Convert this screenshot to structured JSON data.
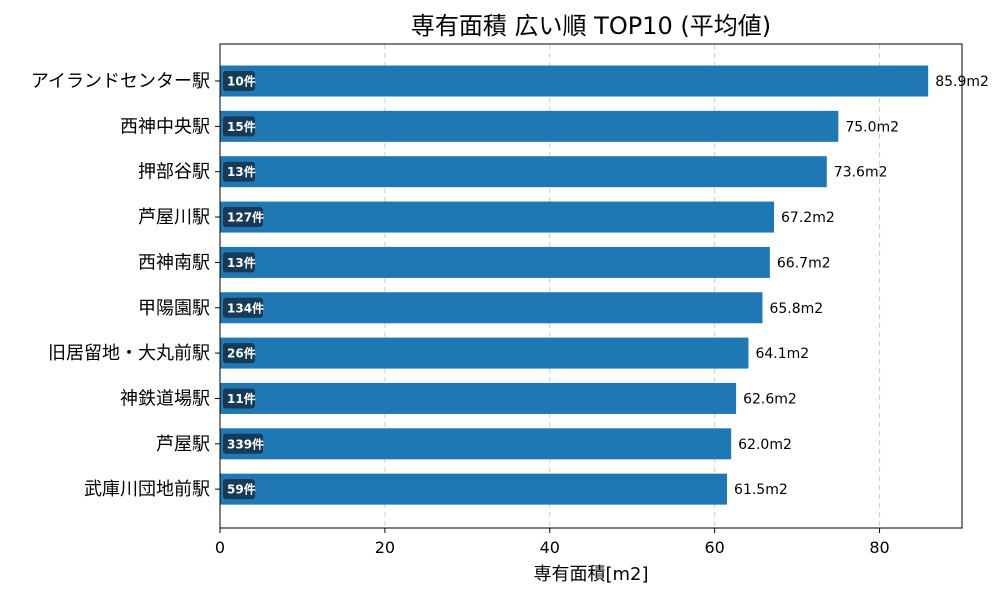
{
  "chart_data": {
    "type": "bar",
    "orientation": "horizontal",
    "title": "専有面積 広い順 TOP10 (平均値)",
    "xlabel": "専有面積[m2]",
    "ylabel": "",
    "xlim": [
      0,
      90
    ],
    "xticks": [
      "0",
      "20",
      "40",
      "60",
      "80"
    ],
    "grid": "vertical-dashed",
    "bar_color": "#1f77b4",
    "count_badge_color": "#163a57",
    "categories": [
      "アイランドセンター駅",
      "西神中央駅",
      "押部谷駅",
      "芦屋川駅",
      "西神南駅",
      "甲陽園駅",
      "旧居留地・大丸前駅",
      "神鉄道場駅",
      "芦屋駅",
      "武庫川団地前駅"
    ],
    "values": [
      85.9,
      75.0,
      73.6,
      67.2,
      66.7,
      65.8,
      64.1,
      62.6,
      62.0,
      61.5
    ],
    "value_labels": [
      "85.9m2",
      "75.0m2",
      "73.6m2",
      "67.2m2",
      "66.7m2",
      "65.8m2",
      "64.1m2",
      "62.6m2",
      "62.0m2",
      "61.5m2"
    ],
    "counts": [
      "10件",
      "15件",
      "13件",
      "127件",
      "13件",
      "134件",
      "26件",
      "11件",
      "339件",
      "59件"
    ]
  }
}
